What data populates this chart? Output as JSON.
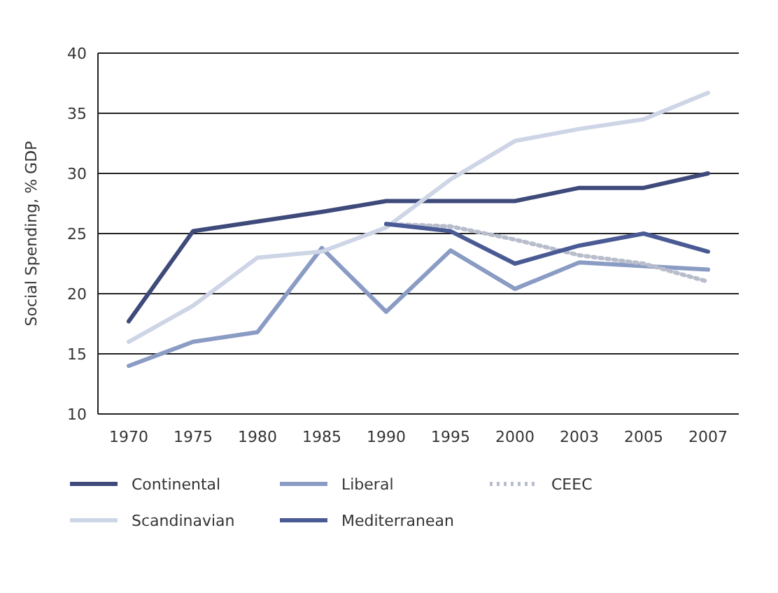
{
  "chart_data": {
    "type": "line",
    "ylabel": "Social Spending, % GDP",
    "categories": [
      "1970",
      "1975",
      "1980",
      "1985",
      "1990",
      "1995",
      "2000",
      "2003",
      "2005",
      "2007"
    ],
    "series": [
      {
        "name": "Continental",
        "color": "#3d4a7a",
        "values": [
          17.7,
          25.2,
          26,
          26.8,
          27.7,
          27.7,
          27.7,
          28.8,
          28.8,
          30
        ]
      },
      {
        "name": "Liberal",
        "color": "#8a9cc4",
        "values": [
          14,
          16,
          16.8,
          23.8,
          18.5,
          23.6,
          20.4,
          22.6,
          22.3,
          22
        ]
      },
      {
        "name": "CEEC",
        "color": "#b8bdcc",
        "line_style": "dotted",
        "values": [
          null,
          null,
          null,
          null,
          25.8,
          25.6,
          24.5,
          23.2,
          22.5,
          21
        ]
      },
      {
        "name": "Scandinavian",
        "color": "#cdd5e6",
        "values": [
          16,
          19,
          23,
          23.5,
          25.5,
          29.5,
          32.7,
          33.7,
          34.5,
          36.7
        ]
      },
      {
        "name": "Mediterranean",
        "color": "#4a5a94",
        "values": [
          null,
          null,
          null,
          null,
          25.8,
          25.2,
          22.5,
          24,
          25,
          23.5
        ]
      }
    ],
    "ylim": [
      10,
      40
    ],
    "yticks": [
      10,
      15,
      20,
      25,
      30,
      35,
      40
    ],
    "grid": "y",
    "legend": "bottom",
    "line_style": "solid",
    "marker": "none"
  }
}
